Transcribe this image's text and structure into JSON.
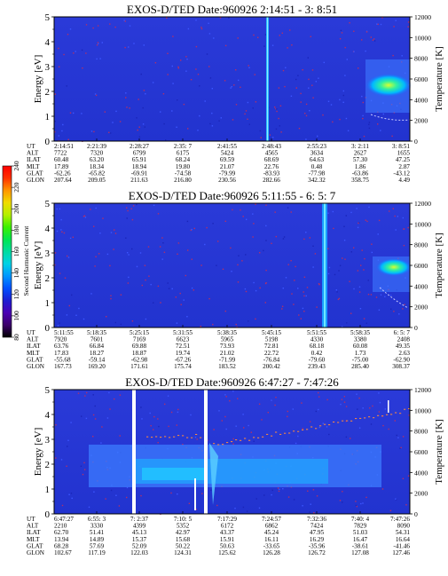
{
  "chart_data": [
    {
      "type": "heatmap",
      "title": "EXOS-D/TED   Date:960926  2:14:51 - 3: 8:51",
      "ylabel": "Energy [eV]",
      "ylabel2": "Temperature [K]",
      "ylim": [
        0,
        5
      ],
      "ylim2": [
        0,
        12000
      ],
      "yticks": [
        "0",
        "1",
        "2",
        "3",
        "4",
        "5"
      ],
      "yticks2": [
        "0",
        "2000",
        "4000",
        "6000",
        "8000",
        "10000",
        "12000"
      ],
      "rows": [
        {
          "name": "UT",
          "values": [
            "2:14:51",
            "2:21:39",
            "2:28:27",
            "2:35: 7",
            "2:41:55",
            "2:48:43",
            "2:55:23",
            "3: 2:11",
            "3: 8:51"
          ]
        },
        {
          "name": "ALT",
          "values": [
            "7722",
            "7320",
            "6799",
            "6175",
            "5424",
            "4565",
            "3634",
            "2627",
            "1655"
          ]
        },
        {
          "name": "ILAT",
          "values": [
            "60.48",
            "63.20",
            "65.91",
            "68.24",
            "69.59",
            "68.69",
            "64.63",
            "57.30",
            "47.25"
          ]
        },
        {
          "name": "MLT",
          "values": [
            "17.89",
            "18.34",
            "18.94",
            "19.80",
            "21.07",
            "22.76",
            "0.48",
            "1.86",
            "2.87"
          ]
        },
        {
          "name": "GLAT",
          "values": [
            "-62.26",
            "-65.82",
            "-69.91",
            "-74.58",
            "-79.99",
            "-83.93",
            "-77.98",
            "-63.86",
            "-43.12"
          ]
        },
        {
          "name": "GLON",
          "values": [
            "207.64",
            "209.05",
            "211.63",
            "216.80",
            "230.56",
            "282.66",
            "342.32",
            "358.75",
            "4.49"
          ]
        }
      ]
    },
    {
      "type": "heatmap",
      "title": "EXOS-D/TED   Date:960926  5:11:55 - 6: 5: 7",
      "ylabel": "Energy [eV]",
      "ylabel2": "Temperature [K]",
      "ylim": [
        0,
        5
      ],
      "ylim2": [
        0,
        12000
      ],
      "yticks": [
        "0",
        "1",
        "2",
        "3",
        "4",
        "5"
      ],
      "yticks2": [
        "0",
        "2000",
        "4000",
        "6000",
        "8000",
        "10000",
        "12000"
      ],
      "rows": [
        {
          "name": "UT",
          "values": [
            "5:11:55",
            "5:18:35",
            "5:25:15",
            "5:31:55",
            "5:38:35",
            "5:45:15",
            "5:51:55",
            "5:58:35",
            "6: 5: 7"
          ]
        },
        {
          "name": "ALT",
          "values": [
            "7920",
            "7601",
            "7169",
            "6623",
            "5965",
            "5198",
            "4330",
            "3380",
            "2408"
          ]
        },
        {
          "name": "ILAT",
          "values": [
            "63.76",
            "66.84",
            "69.88",
            "72.51",
            "73.93",
            "72.81",
            "68.18",
            "60.08",
            "49.35"
          ]
        },
        {
          "name": "MLT",
          "values": [
            "17.83",
            "18.27",
            "18.87",
            "19.74",
            "21.02",
            "22.72",
            "0.42",
            "1.73",
            "2.63"
          ]
        },
        {
          "name": "GLAT",
          "values": [
            "-55.68",
            "-59.14",
            "-62.98",
            "-67.26",
            "-71.99",
            "-76.84",
            "-79.60",
            "-75.00",
            "-62.90"
          ]
        },
        {
          "name": "GLON",
          "values": [
            "167.73",
            "169.20",
            "171.61",
            "175.74",
            "183.52",
            "200.42",
            "239.43",
            "285.40",
            "308.37"
          ]
        }
      ]
    },
    {
      "type": "heatmap",
      "title": "EXOS-D/TED   Date:960926  6:47:27 - 7:47:26",
      "ylabel": "Energy [eV]",
      "ylabel2": "Temperature [K]",
      "ylim": [
        0,
        5
      ],
      "ylim2": [
        0,
        12000
      ],
      "yticks": [
        "0",
        "1",
        "2",
        "3",
        "4",
        "5"
      ],
      "yticks2": [
        "0",
        "2000",
        "4000",
        "6000",
        "8000",
        "10000",
        "12000"
      ],
      "rows": [
        {
          "name": "UT",
          "values": [
            "6:47:27",
            "6:55: 3",
            "7: 2:37",
            "7:10: 5",
            "7:17:29",
            "7:24:57",
            "7:32:36",
            "7:40: 4",
            "7:47:26"
          ]
        },
        {
          "name": "ALT",
          "values": [
            "2210",
            "3330",
            "4399",
            "5352",
            "6172",
            "6862",
            "7424",
            "7829",
            "8090"
          ]
        },
        {
          "name": "ILAT",
          "values": [
            "62.70",
            "51.41",
            "45.13",
            "42.97",
            "43.37",
            "45.24",
            "47.95",
            "51.03",
            "54.31"
          ]
        },
        {
          "name": "MLT",
          "values": [
            "13.94",
            "14.89",
            "15.37",
            "15.68",
            "15.91",
            "16.11",
            "16.29",
            "16.47",
            "16.64"
          ]
        },
        {
          "name": "GLAT",
          "values": [
            "68.28",
            "57.69",
            "52.09",
            "50.22",
            "50.63",
            "-33.65",
            "-35.96",
            "-38.61",
            "-41.46"
          ]
        },
        {
          "name": "GLON",
          "values": [
            "102.67",
            "117.19",
            "122.03",
            "124.31",
            "125.62",
            "126.28",
            "126.72",
            "127.08",
            "127.46"
          ]
        }
      ]
    }
  ],
  "colorbar": {
    "label": "Second Harmonic Current",
    "ticks": [
      "80",
      "100",
      "120",
      "140",
      "160",
      "180",
      "200",
      "220",
      "240"
    ],
    "colors": [
      "#000000",
      "#3b0069",
      "#4b00b4",
      "#1e1ed2",
      "#0050ff",
      "#0096ff",
      "#00d2e6",
      "#00dca0",
      "#00e650",
      "#3cf000",
      "#b4f000",
      "#f0dc00",
      "#ff9600",
      "#ff3200",
      "#ff0000"
    ]
  }
}
